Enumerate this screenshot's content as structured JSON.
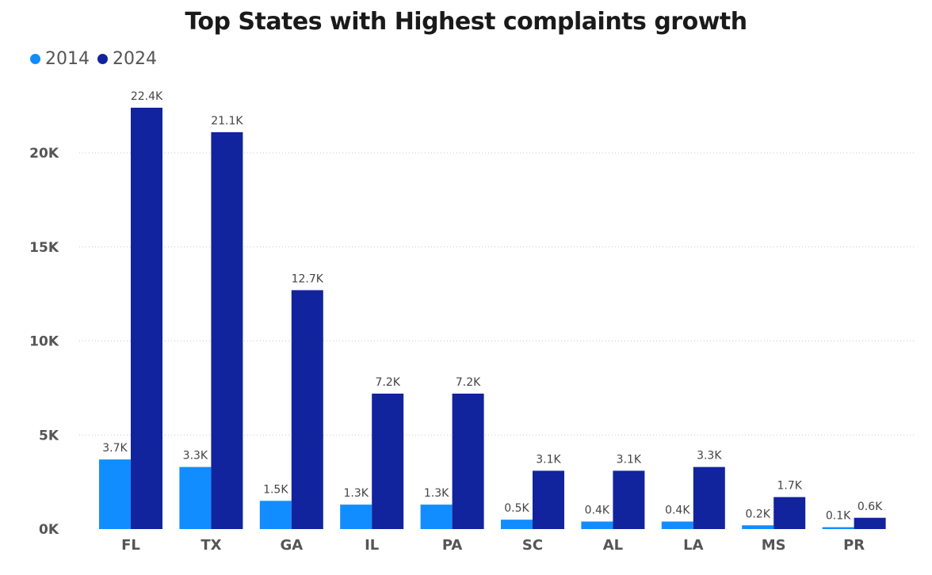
{
  "chart_data": {
    "type": "bar",
    "title": "Top States with Highest complaints growth",
    "categories": [
      "FL",
      "TX",
      "GA",
      "IL",
      "PA",
      "SC",
      "AL",
      "LA",
      "MS",
      "PR"
    ],
    "series": [
      {
        "name": "2014",
        "color": "#118dff",
        "values": [
          3700,
          3300,
          1500,
          1300,
          1300,
          500,
          400,
          400,
          200,
          100
        ],
        "labels": [
          "3.7K",
          "3.3K",
          "1.5K",
          "1.3K",
          "1.3K",
          "0.5K",
          "0.4K",
          "0.4K",
          "0.2K",
          "0.1K"
        ]
      },
      {
        "name": "2024",
        "color": "#12239e",
        "values": [
          22400,
          21100,
          12700,
          7200,
          7200,
          3100,
          3100,
          3300,
          1700,
          600
        ],
        "labels": [
          "22.4K",
          "21.1K",
          "12.7K",
          "7.2K",
          "7.2K",
          "3.1K",
          "3.1K",
          "3.3K",
          "1.7K",
          "0.6K"
        ]
      }
    ],
    "yticks": [
      0,
      5000,
      10000,
      15000,
      20000
    ],
    "ytick_labels": [
      "0K",
      "5K",
      "10K",
      "15K",
      "20K"
    ],
    "ylim": [
      0,
      23000
    ],
    "grid": true,
    "legend_position": "top-left"
  }
}
